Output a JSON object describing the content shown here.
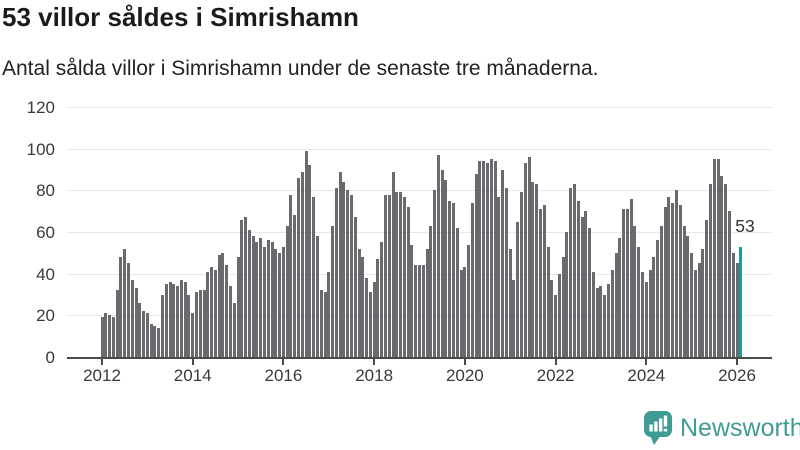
{
  "header": {
    "title": "53 villor såldes i Simrishamn",
    "subtitle": "Antal sålda villor i Simrishamn under de senaste tre månaderna."
  },
  "chart_data": {
    "type": "bar",
    "title": "53 villor såldes i Simrishamn",
    "subtitle": "Antal sålda villor i Simrishamn under de senaste tre månaderna.",
    "x_start": "2012-01",
    "x_tick_labels": [
      "2012",
      "2014",
      "2016",
      "2018",
      "2020",
      "2022",
      "2024",
      "2026"
    ],
    "y_ticks": [
      0,
      20,
      40,
      60,
      80,
      100,
      120
    ],
    "ylim": [
      0,
      120
    ],
    "grid": "horizontal",
    "bar_color": "#6a6a6e",
    "highlight_color": "#1a9b9c",
    "highlight_last": true,
    "highlight_value_label": "53",
    "values": [
      19,
      21,
      20,
      19,
      32,
      48,
      52,
      45,
      37,
      33,
      26,
      22,
      21,
      16,
      15,
      14,
      30,
      35,
      36,
      35,
      34,
      37,
      36,
      30,
      21,
      31,
      32,
      32,
      41,
      43,
      42,
      49,
      50,
      44,
      34,
      26,
      48,
      66,
      67,
      61,
      58,
      55,
      57,
      53,
      56,
      55,
      52,
      50,
      53,
      63,
      78,
      68,
      86,
      89,
      99,
      92,
      77,
      58,
      32,
      31,
      41,
      63,
      81,
      89,
      84,
      80,
      78,
      67,
      52,
      48,
      38,
      31,
      36,
      47,
      55,
      78,
      78,
      89,
      79,
      79,
      77,
      72,
      54,
      44,
      44,
      44,
      52,
      63,
      80,
      97,
      90,
      85,
      75,
      74,
      62,
      42,
      43,
      54,
      74,
      88,
      94,
      94,
      93,
      95,
      94,
      77,
      90,
      81,
      52,
      37,
      65,
      79,
      93,
      96,
      84,
      83,
      71,
      73,
      53,
      37,
      30,
      40,
      48,
      60,
      81,
      83,
      75,
      67,
      70,
      62,
      41,
      33,
      34,
      30,
      35,
      42,
      50,
      57,
      71,
      71,
      76,
      63,
      53,
      41,
      36,
      42,
      48,
      56,
      63,
      72,
      77,
      74,
      80,
      73,
      63,
      58,
      50,
      42,
      45,
      52,
      66,
      83,
      95,
      95,
      87,
      83,
      70,
      50,
      45,
      53
    ]
  },
  "branding": {
    "logo_text": "Newsworthy",
    "logo_color": "#3e9c95",
    "logo_icon": "bar-chart-speech-bubble-icon"
  }
}
